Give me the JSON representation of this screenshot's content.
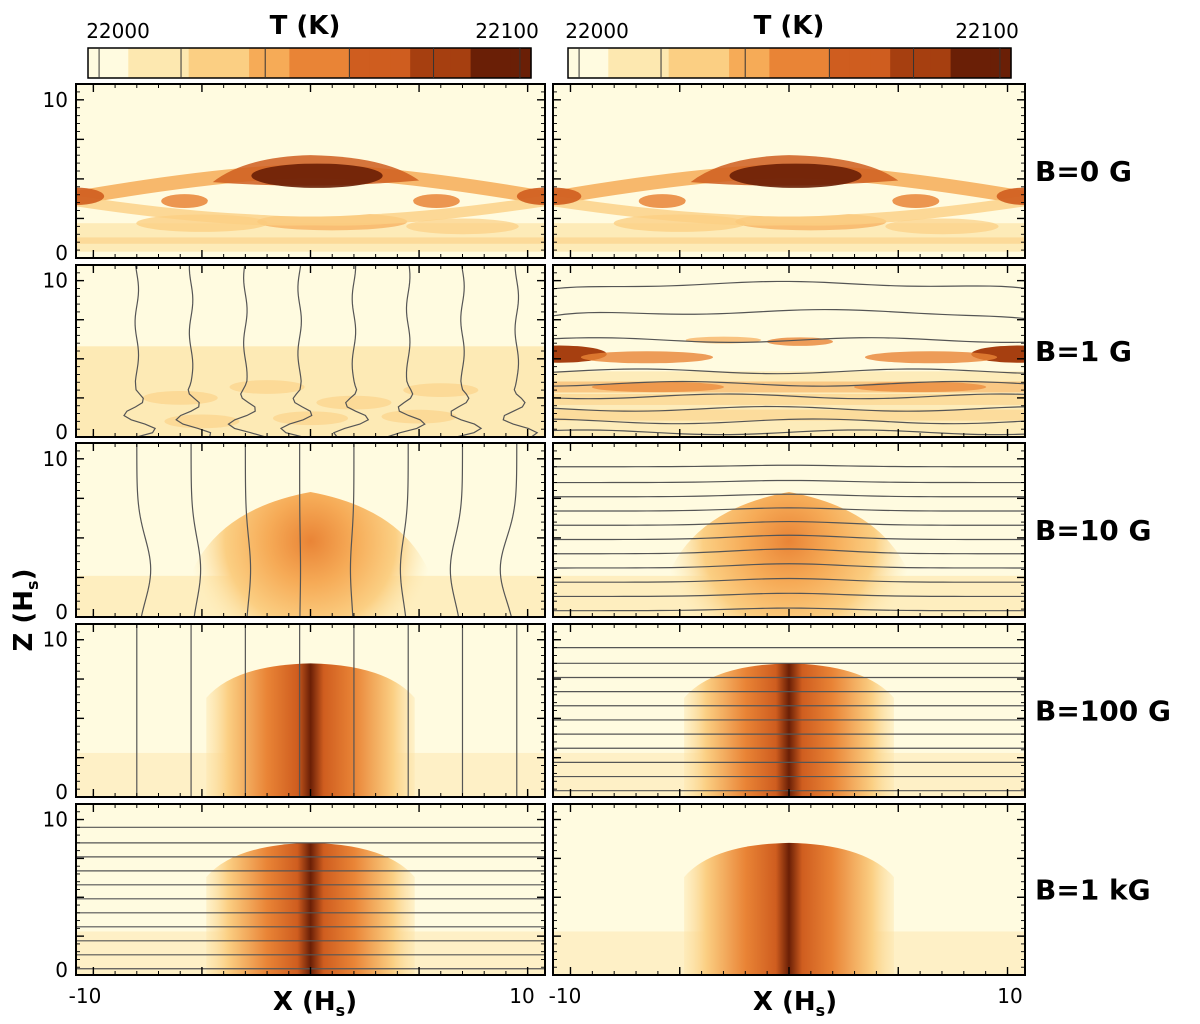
{
  "colorbar": {
    "title": "T (K)",
    "tick_min": "22000",
    "tick_max": "22100",
    "vmin": 22000,
    "vmax": 22100
  },
  "colormap": [
    "#fffbe0",
    "#fde8b0",
    "#fbcf83",
    "#f6ab57",
    "#e98436",
    "#cf5d1f",
    "#a63f10",
    "#6a1f06"
  ],
  "axes": {
    "xlabel": "X (H",
    "xlabel_sub": "s",
    "ylabel": "Z (H",
    "ylabel_sub": "s",
    "xtick_left": "-10",
    "xtick_right": "10",
    "ytick_top": "10",
    "ytick_bottom": "0"
  },
  "chart_data": {
    "type": "heatmap",
    "xlim": [
      -10.8,
      10.8
    ],
    "ylim": [
      0,
      11
    ],
    "columns": 2,
    "rows": [
      {
        "label": "B=0 G",
        "panels": [
          {
            "pattern": "convective",
            "field_lines": "none"
          },
          {
            "pattern": "convective",
            "field_lines": "none"
          }
        ]
      },
      {
        "label": "B=1 G",
        "panels": [
          {
            "pattern": "weak_diffuse",
            "field_lines": "vertical_wavy"
          },
          {
            "pattern": "layered_streaks",
            "field_lines": "horizontal_wavy"
          }
        ]
      },
      {
        "label": "B=10 G",
        "panels": [
          {
            "pattern": "dome_medium",
            "field_lines": "vertical_bent"
          },
          {
            "pattern": "dome_medium",
            "field_lines": "horizontal_bent"
          }
        ]
      },
      {
        "label": "B=100 G",
        "panels": [
          {
            "pattern": "column_strong",
            "field_lines": "vertical_straight"
          },
          {
            "pattern": "column_strong",
            "field_lines": "horizontal_straight"
          }
        ]
      },
      {
        "label": "B=1 kG",
        "panels": [
          {
            "pattern": "column_strong",
            "field_lines": "horizontal_straight"
          },
          {
            "pattern": "column_strong",
            "field_lines": "none"
          }
        ]
      }
    ]
  }
}
